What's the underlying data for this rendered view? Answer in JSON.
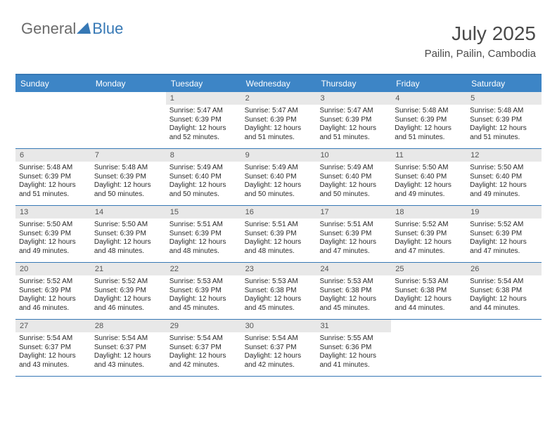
{
  "logo": {
    "part1": "General",
    "part2": "Blue",
    "triangle_color": "#3678b5"
  },
  "title": {
    "month": "July 2025",
    "location": "Pailin, Pailin, Cambodia"
  },
  "header_bg": "#3d85c6",
  "header_fg": "#ffffff",
  "daynum_bg": "#e8e8e8",
  "border_color": "#3678b5",
  "day_font_size": 10,
  "header_font_size": 12,
  "headers": [
    "Sunday",
    "Monday",
    "Tuesday",
    "Wednesday",
    "Thursday",
    "Friday",
    "Saturday"
  ],
  "weeks": [
    [
      {
        "n": "",
        "sr": "",
        "ss": "",
        "dl": ""
      },
      {
        "n": "",
        "sr": "",
        "ss": "",
        "dl": ""
      },
      {
        "n": "1",
        "sr": "5:47 AM",
        "ss": "6:39 PM",
        "dl": "12 hours and 52 minutes."
      },
      {
        "n": "2",
        "sr": "5:47 AM",
        "ss": "6:39 PM",
        "dl": "12 hours and 51 minutes."
      },
      {
        "n": "3",
        "sr": "5:47 AM",
        "ss": "6:39 PM",
        "dl": "12 hours and 51 minutes."
      },
      {
        "n": "4",
        "sr": "5:48 AM",
        "ss": "6:39 PM",
        "dl": "12 hours and 51 minutes."
      },
      {
        "n": "5",
        "sr": "5:48 AM",
        "ss": "6:39 PM",
        "dl": "12 hours and 51 minutes."
      }
    ],
    [
      {
        "n": "6",
        "sr": "5:48 AM",
        "ss": "6:39 PM",
        "dl": "12 hours and 51 minutes."
      },
      {
        "n": "7",
        "sr": "5:48 AM",
        "ss": "6:39 PM",
        "dl": "12 hours and 50 minutes."
      },
      {
        "n": "8",
        "sr": "5:49 AM",
        "ss": "6:40 PM",
        "dl": "12 hours and 50 minutes."
      },
      {
        "n": "9",
        "sr": "5:49 AM",
        "ss": "6:40 PM",
        "dl": "12 hours and 50 minutes."
      },
      {
        "n": "10",
        "sr": "5:49 AM",
        "ss": "6:40 PM",
        "dl": "12 hours and 50 minutes."
      },
      {
        "n": "11",
        "sr": "5:50 AM",
        "ss": "6:40 PM",
        "dl": "12 hours and 49 minutes."
      },
      {
        "n": "12",
        "sr": "5:50 AM",
        "ss": "6:40 PM",
        "dl": "12 hours and 49 minutes."
      }
    ],
    [
      {
        "n": "13",
        "sr": "5:50 AM",
        "ss": "6:39 PM",
        "dl": "12 hours and 49 minutes."
      },
      {
        "n": "14",
        "sr": "5:50 AM",
        "ss": "6:39 PM",
        "dl": "12 hours and 48 minutes."
      },
      {
        "n": "15",
        "sr": "5:51 AM",
        "ss": "6:39 PM",
        "dl": "12 hours and 48 minutes."
      },
      {
        "n": "16",
        "sr": "5:51 AM",
        "ss": "6:39 PM",
        "dl": "12 hours and 48 minutes."
      },
      {
        "n": "17",
        "sr": "5:51 AM",
        "ss": "6:39 PM",
        "dl": "12 hours and 47 minutes."
      },
      {
        "n": "18",
        "sr": "5:52 AM",
        "ss": "6:39 PM",
        "dl": "12 hours and 47 minutes."
      },
      {
        "n": "19",
        "sr": "5:52 AM",
        "ss": "6:39 PM",
        "dl": "12 hours and 47 minutes."
      }
    ],
    [
      {
        "n": "20",
        "sr": "5:52 AM",
        "ss": "6:39 PM",
        "dl": "12 hours and 46 minutes."
      },
      {
        "n": "21",
        "sr": "5:52 AM",
        "ss": "6:39 PM",
        "dl": "12 hours and 46 minutes."
      },
      {
        "n": "22",
        "sr": "5:53 AM",
        "ss": "6:39 PM",
        "dl": "12 hours and 45 minutes."
      },
      {
        "n": "23",
        "sr": "5:53 AM",
        "ss": "6:38 PM",
        "dl": "12 hours and 45 minutes."
      },
      {
        "n": "24",
        "sr": "5:53 AM",
        "ss": "6:38 PM",
        "dl": "12 hours and 45 minutes."
      },
      {
        "n": "25",
        "sr": "5:53 AM",
        "ss": "6:38 PM",
        "dl": "12 hours and 44 minutes."
      },
      {
        "n": "26",
        "sr": "5:54 AM",
        "ss": "6:38 PM",
        "dl": "12 hours and 44 minutes."
      }
    ],
    [
      {
        "n": "27",
        "sr": "5:54 AM",
        "ss": "6:37 PM",
        "dl": "12 hours and 43 minutes."
      },
      {
        "n": "28",
        "sr": "5:54 AM",
        "ss": "6:37 PM",
        "dl": "12 hours and 43 minutes."
      },
      {
        "n": "29",
        "sr": "5:54 AM",
        "ss": "6:37 PM",
        "dl": "12 hours and 42 minutes."
      },
      {
        "n": "30",
        "sr": "5:54 AM",
        "ss": "6:37 PM",
        "dl": "12 hours and 42 minutes."
      },
      {
        "n": "31",
        "sr": "5:55 AM",
        "ss": "6:36 PM",
        "dl": "12 hours and 41 minutes."
      },
      {
        "n": "",
        "sr": "",
        "ss": "",
        "dl": ""
      },
      {
        "n": "",
        "sr": "",
        "ss": "",
        "dl": ""
      }
    ]
  ],
  "labels": {
    "sunrise": "Sunrise: ",
    "sunset": "Sunset: ",
    "daylight": "Daylight: "
  }
}
